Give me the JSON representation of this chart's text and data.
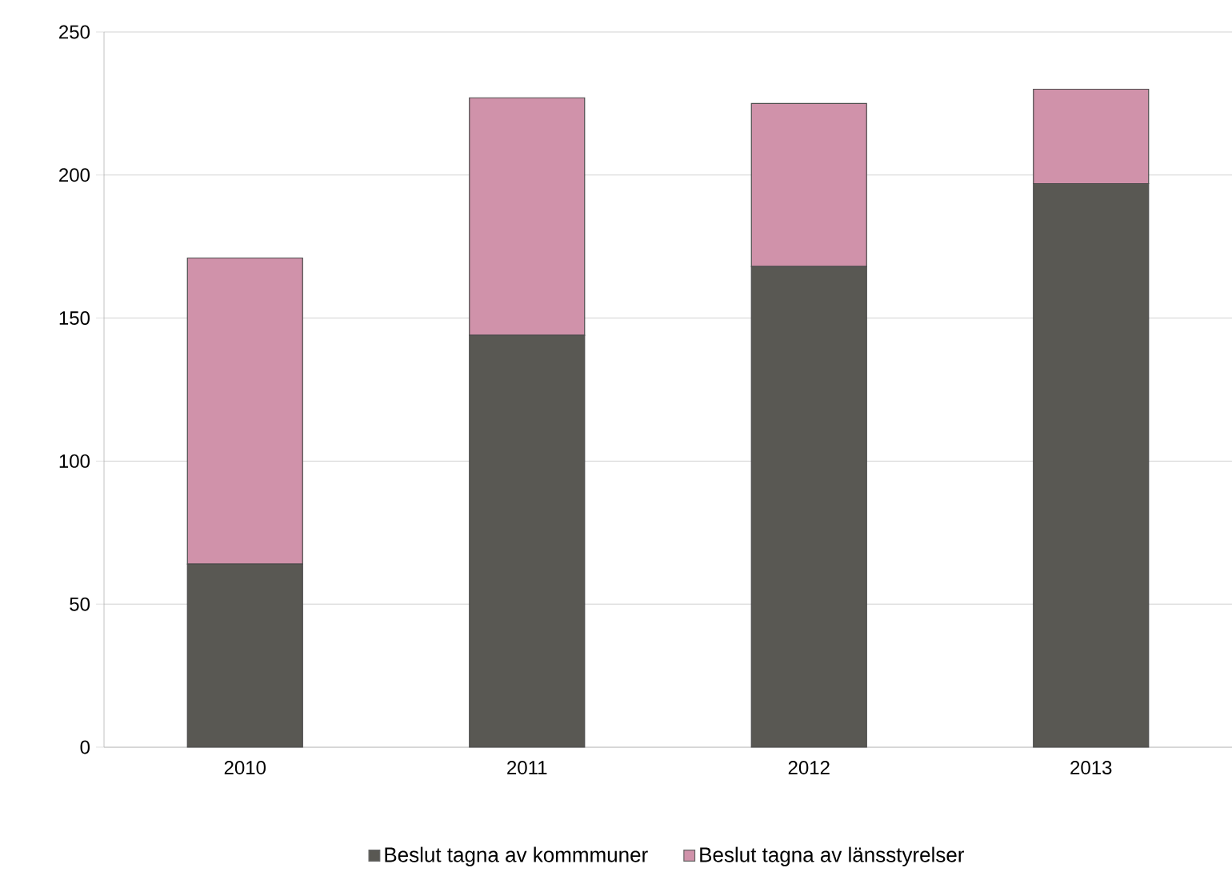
{
  "chart_data": {
    "type": "bar",
    "stacked": true,
    "categories": [
      "2010",
      "2011",
      "2012",
      "2013"
    ],
    "series": [
      {
        "name": "Beslut tagna av kommmuner",
        "color": "#595853",
        "values": [
          64,
          144,
          168,
          197
        ]
      },
      {
        "name": "Beslut tagna av länsstyrelser",
        "color": "#d092aa",
        "values": [
          107,
          83,
          57,
          33
        ]
      }
    ],
    "ylim": [
      0,
      250
    ],
    "yticks": [
      0,
      50,
      100,
      150,
      200,
      250
    ],
    "grid": "y",
    "legend": "bottom"
  }
}
